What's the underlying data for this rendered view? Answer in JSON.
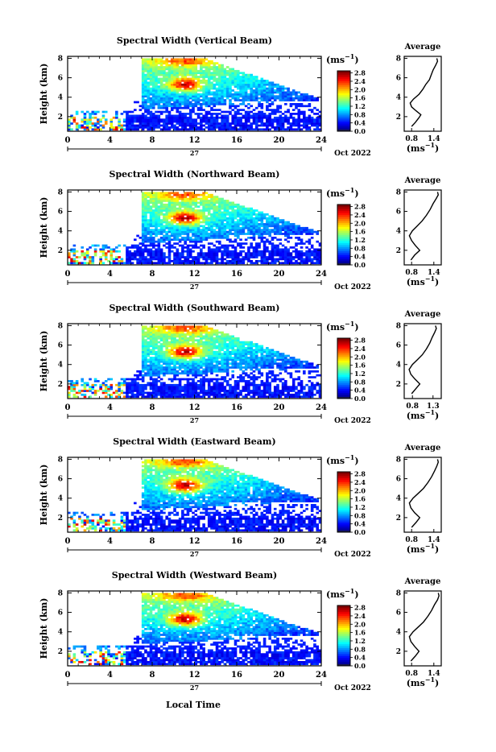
{
  "units_label": "(ms",
  "units_sup": "−1",
  "units_close": ")",
  "avg_title": "Average",
  "y_axis_label": "Height (km)",
  "x_axis_label": "Local Time",
  "day_label": "27",
  "month_label": "Oct 2022",
  "chart_data": [
    {
      "type": "heatmap",
      "title": "Spectral Width (Vertical Beam)",
      "x_ticks": [
        0,
        4,
        8,
        12,
        16,
        20,
        24
      ],
      "y_ticks": [
        2,
        4,
        6,
        8
      ],
      "xlim": [
        0,
        24
      ],
      "ylim": [
        0.5,
        8.2
      ],
      "colorbar": {
        "ticks": [
          "0.0",
          "0.4",
          "0.8",
          "1.2",
          "1.6",
          "2.0",
          "2.4",
          "2.8"
        ],
        "range": [
          0,
          2.9
        ]
      },
      "profile": {
        "xticks": [
          "0.8",
          "1.4"
        ],
        "xlim": [
          0.6,
          1.6
        ],
        "points": [
          [
            0.8,
            1.0
          ],
          [
            0.9,
            1.4
          ],
          [
            1.0,
            1.9
          ],
          [
            1.05,
            2.2
          ],
          [
            0.92,
            2.6
          ],
          [
            0.8,
            3.0
          ],
          [
            0.76,
            3.4
          ],
          [
            0.85,
            3.8
          ],
          [
            1.0,
            4.3
          ],
          [
            1.1,
            4.8
          ],
          [
            1.18,
            5.3
          ],
          [
            1.28,
            5.8
          ],
          [
            1.33,
            6.3
          ],
          [
            1.38,
            6.8
          ],
          [
            1.45,
            7.3
          ],
          [
            1.5,
            7.7
          ],
          [
            1.48,
            8.0
          ]
        ]
      }
    },
    {
      "type": "heatmap",
      "title": "Spectral Width (Northward Beam)",
      "x_ticks": [
        0,
        4,
        8,
        12,
        16,
        20,
        24
      ],
      "y_ticks": [
        2,
        4,
        6,
        8
      ],
      "xlim": [
        0,
        24
      ],
      "ylim": [
        0.5,
        8.2
      ],
      "colorbar": {
        "ticks": [
          "0.0",
          "0.4",
          "0.8",
          "1.2",
          "1.6",
          "2.0",
          "2.4",
          "2.8"
        ],
        "range": [
          0,
          2.9
        ]
      },
      "profile": {
        "xticks": [
          "0.8",
          "1.4"
        ],
        "xlim": [
          0.6,
          1.6
        ],
        "points": [
          [
            0.78,
            1.0
          ],
          [
            0.88,
            1.5
          ],
          [
            1.02,
            2.0
          ],
          [
            0.9,
            2.5
          ],
          [
            0.8,
            3.0
          ],
          [
            0.74,
            3.5
          ],
          [
            0.82,
            4.0
          ],
          [
            0.95,
            4.5
          ],
          [
            1.08,
            5.0
          ],
          [
            1.2,
            5.6
          ],
          [
            1.3,
            6.2
          ],
          [
            1.38,
            6.8
          ],
          [
            1.46,
            7.3
          ],
          [
            1.52,
            7.7
          ],
          [
            1.5,
            8.0
          ]
        ]
      }
    },
    {
      "type": "heatmap",
      "title": "Spectral Width (Southward Beam)",
      "x_ticks": [
        0,
        4,
        8,
        12,
        16,
        20,
        24
      ],
      "y_ticks": [
        2,
        4,
        6,
        8
      ],
      "xlim": [
        0,
        24
      ],
      "ylim": [
        0.5,
        8.2
      ],
      "colorbar": {
        "ticks": [
          "0.0",
          "0.4",
          "0.8",
          "1.2",
          "1.6",
          "2.0",
          "2.4",
          "2.8"
        ],
        "range": [
          0,
          2.9
        ]
      },
      "profile": {
        "xticks": [
          "0.8",
          "1.3"
        ],
        "xlim": [
          0.6,
          1.5
        ],
        "points": [
          [
            0.78,
            1.0
          ],
          [
            0.88,
            1.5
          ],
          [
            0.98,
            2.0
          ],
          [
            0.86,
            2.5
          ],
          [
            0.76,
            3.0
          ],
          [
            0.72,
            3.5
          ],
          [
            0.8,
            4.0
          ],
          [
            0.92,
            4.5
          ],
          [
            1.04,
            5.0
          ],
          [
            1.14,
            5.6
          ],
          [
            1.22,
            6.2
          ],
          [
            1.28,
            6.8
          ],
          [
            1.34,
            7.3
          ],
          [
            1.38,
            7.7
          ],
          [
            1.36,
            8.0
          ]
        ]
      }
    },
    {
      "type": "heatmap",
      "title": "Spectral Width (Eastward Beam)",
      "x_ticks": [
        0,
        4,
        8,
        12,
        16,
        20,
        24
      ],
      "y_ticks": [
        2,
        4,
        6,
        8
      ],
      "xlim": [
        0,
        24
      ],
      "ylim": [
        0.5,
        8.2
      ],
      "colorbar": {
        "ticks": [
          "0.0",
          "0.4",
          "0.8",
          "1.2",
          "1.6",
          "2.0",
          "2.4",
          "2.8"
        ],
        "range": [
          0,
          2.9
        ]
      },
      "profile": {
        "xticks": [
          "0.8",
          "1.4"
        ],
        "xlim": [
          0.6,
          1.6
        ],
        "points": [
          [
            0.8,
            1.0
          ],
          [
            0.92,
            1.5
          ],
          [
            1.02,
            2.0
          ],
          [
            0.88,
            2.5
          ],
          [
            0.78,
            3.0
          ],
          [
            0.74,
            3.5
          ],
          [
            0.84,
            4.0
          ],
          [
            0.98,
            4.5
          ],
          [
            1.12,
            5.0
          ],
          [
            1.24,
            5.6
          ],
          [
            1.34,
            6.2
          ],
          [
            1.42,
            6.8
          ],
          [
            1.48,
            7.3
          ],
          [
            1.52,
            7.7
          ],
          [
            1.5,
            8.0
          ]
        ]
      }
    },
    {
      "type": "heatmap",
      "title": "Spectral Width (Westward Beam)",
      "x_ticks": [
        0,
        4,
        8,
        12,
        16,
        20,
        24
      ],
      "y_ticks": [
        2,
        4,
        6,
        8
      ],
      "xlim": [
        0,
        24
      ],
      "ylim": [
        0.5,
        8.2
      ],
      "colorbar": {
        "ticks": [
          "0.0",
          "0.4",
          "0.8",
          "1.2",
          "1.6",
          "2.0",
          "2.4",
          "2.8"
        ],
        "range": [
          0,
          2.9
        ]
      },
      "profile": {
        "xticks": [
          "0.8",
          "1.4"
        ],
        "xlim": [
          0.6,
          1.6
        ],
        "points": [
          [
            0.78,
            1.0
          ],
          [
            0.9,
            1.5
          ],
          [
            1.0,
            2.0
          ],
          [
            0.88,
            2.5
          ],
          [
            0.78,
            3.0
          ],
          [
            0.74,
            3.5
          ],
          [
            0.84,
            4.0
          ],
          [
            0.98,
            4.5
          ],
          [
            1.12,
            5.0
          ],
          [
            1.24,
            5.6
          ],
          [
            1.34,
            6.2
          ],
          [
            1.42,
            6.8
          ],
          [
            1.5,
            7.3
          ],
          [
            1.54,
            7.7
          ],
          [
            1.52,
            8.0
          ]
        ]
      }
    }
  ]
}
